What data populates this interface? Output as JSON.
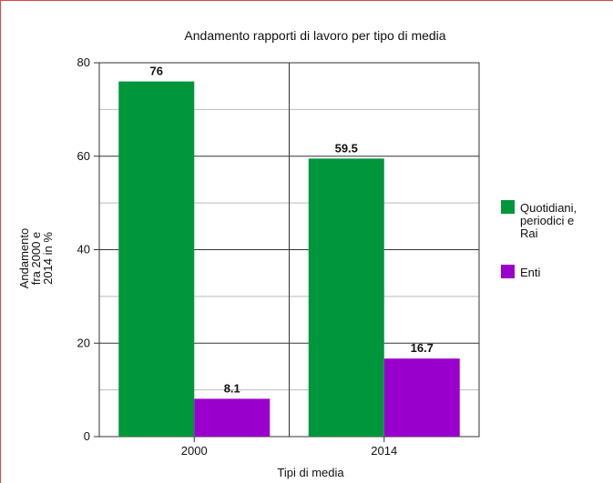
{
  "chart_data": {
    "type": "bar",
    "title": "Andamento rapporti di lavoro per tipo di media",
    "xlabel": "Tipi di media",
    "ylabel_lines": [
      "Andamento",
      "fra 2000 e",
      "2014 in %"
    ],
    "categories": [
      "2000",
      "2014"
    ],
    "ylim": [
      0,
      80
    ],
    "yticks": [
      0,
      20,
      40,
      60,
      80
    ],
    "grid": true,
    "legend_position": "right",
    "series": [
      {
        "name_lines": [
          "Quotidiani,",
          "periodici e",
          "Rai"
        ],
        "color": "#00963c",
        "values": [
          76,
          59.5
        ],
        "value_labels": [
          "76",
          "59.5"
        ]
      },
      {
        "name_lines": [
          "Enti"
        ],
        "color": "#9900cc",
        "values": [
          8.1,
          16.7
        ],
        "value_labels": [
          "8.1",
          "16.7"
        ]
      }
    ]
  }
}
